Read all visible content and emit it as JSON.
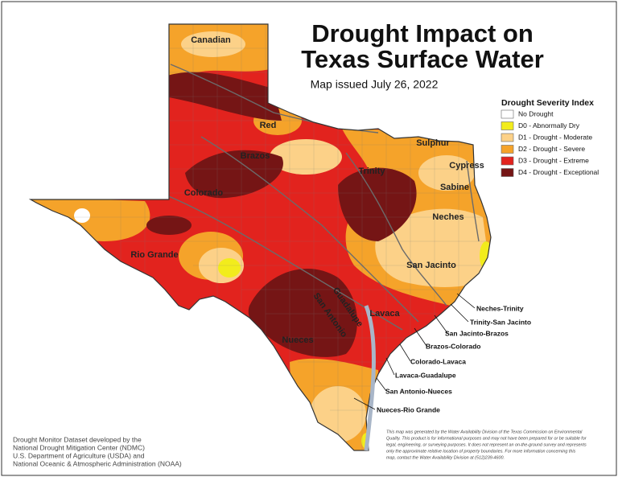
{
  "title_lines": [
    "Drought Impact on",
    "Texas Surface Water"
  ],
  "subtitle": "Map issued July 26, 2022",
  "legend": {
    "title": "Drought Severity Index",
    "items": [
      {
        "label": "No Drought",
        "color": "#ffffff"
      },
      {
        "label": "D0 - Abnormally Dry",
        "color": "#f2ec1c"
      },
      {
        "label": "D1 - Drought - Moderate",
        "color": "#fcd188"
      },
      {
        "label": "D2 - Drought - Severe",
        "color": "#f5a32a"
      },
      {
        "label": "D3 - Drought - Extreme",
        "color": "#e2231e"
      },
      {
        "label": "D4 - Drought - Exceptional",
        "color": "#751515"
      }
    ]
  },
  "basins": [
    "Canadian",
    "Red",
    "Brazos",
    "Colorado",
    "Rio Grande",
    "Sulphur",
    "Cypress",
    "Trinity",
    "Sabine",
    "Neches",
    "San Jacinto",
    "Lavaca",
    "Guadalupe",
    "San Antonio",
    "Nueces"
  ],
  "coastal_basins": [
    "Neches-Trinity",
    "Trinity-San Jacinto",
    "San Jacinto-Brazos",
    "Brazos-Colorado",
    "Colorado-Lavaca",
    "Lavaca-Guadalupe",
    "San Antonio-Nueces",
    "Nueces-Rio Grande"
  ],
  "credits": [
    "Drought Monitor Dataset developed by the",
    "National Drought Mitigation Center (NDMC)",
    "U.S. Department of Agriculture (USDA) and",
    "National Oceanic & Atmospheric Administration (NOAA)"
  ],
  "disclaimer": [
    "This map was generated by the Water Availability Division of the Texas Commission on Environmental",
    "Quality. This product is for informational purposes and may not have been prepared for or be suitable for",
    "legal, engineering, or surveying purposes. It does not represent an on-the-ground survey and represents",
    "only the approximate relative location of property boundaries. For more information concerning this",
    "map, contact the Water Availability Division at (512)239-4600."
  ]
}
